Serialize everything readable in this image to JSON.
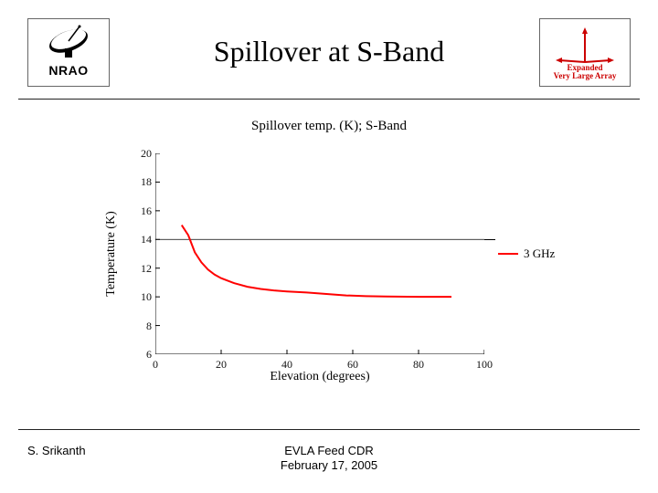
{
  "header": {
    "title": "Spillover at S-Band",
    "title_fontsize": 32,
    "nrao_label": "NRAO",
    "vla_label_line1": "Expanded",
    "vla_label_line2": "Very Large Array"
  },
  "footer": {
    "left": "S. Srikanth",
    "center_line1": "EVLA Feed CDR",
    "center_line2": "February 17, 2005",
    "fontsize": 13
  },
  "chart": {
    "type": "line",
    "title": "Spillover temp. (K); S-Band",
    "title_fontsize": 15,
    "xlabel": "Elevation (degrees)",
    "ylabel": "Temperature (K)",
    "label_fontsize": 14,
    "tick_fontsize": 12,
    "xlim": [
      0,
      100
    ],
    "ylim": [
      6,
      20
    ],
    "xticks": [
      0,
      20,
      40,
      60,
      80,
      100
    ],
    "yticks": [
      6,
      8,
      10,
      12,
      14,
      16,
      18,
      20
    ],
    "grid": false,
    "grid_full_at_y": 14,
    "background_color": "#ffffff",
    "axis_color": "#000000",
    "series": [
      {
        "name": "3 GHz",
        "color": "#ff0000",
        "width": 2,
        "data": [
          [
            8,
            15.0
          ],
          [
            10,
            14.3
          ],
          [
            12,
            13.1
          ],
          [
            14,
            12.4
          ],
          [
            16,
            11.9
          ],
          [
            18,
            11.55
          ],
          [
            20,
            11.3
          ],
          [
            24,
            10.95
          ],
          [
            28,
            10.7
          ],
          [
            32,
            10.55
          ],
          [
            36,
            10.45
          ],
          [
            40,
            10.38
          ],
          [
            46,
            10.3
          ],
          [
            52,
            10.2
          ],
          [
            58,
            10.1
          ],
          [
            64,
            10.05
          ],
          [
            70,
            10.02
          ],
          [
            80,
            10.0
          ],
          [
            90,
            10.0
          ]
        ]
      }
    ],
    "legend": {
      "position": "right",
      "items": [
        "3 GHz"
      ]
    }
  }
}
